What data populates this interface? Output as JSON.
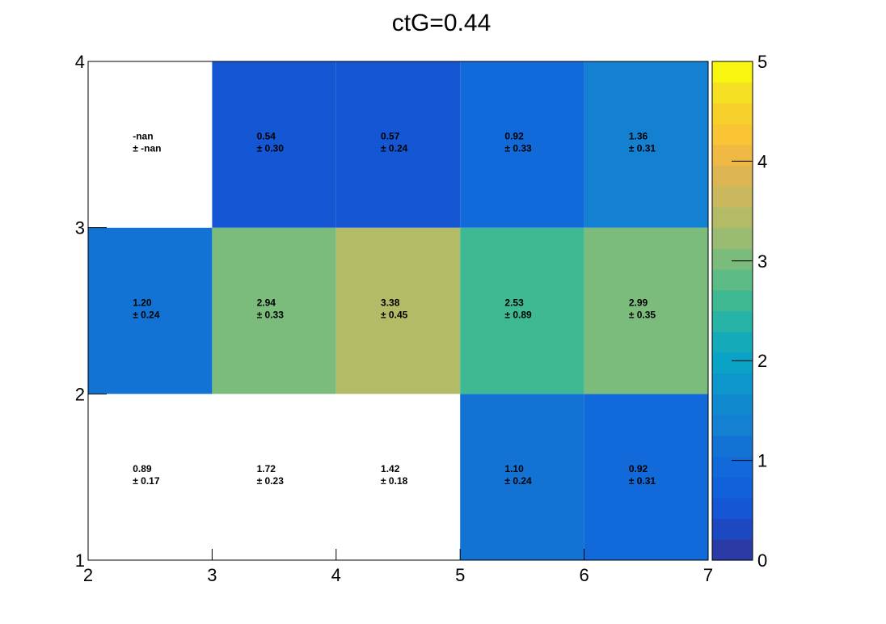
{
  "chart_data": {
    "type": "heatmap",
    "title": "ctG=0.44",
    "xlabel": "",
    "ylabel": "",
    "x_edges": [
      2,
      3,
      4,
      5,
      6,
      7
    ],
    "y_edges": [
      1,
      2,
      3,
      4
    ],
    "xlim": [
      2,
      7
    ],
    "ylim": [
      1,
      4
    ],
    "x_tick_labels": [
      "2",
      "3",
      "4",
      "5",
      "6",
      "7"
    ],
    "y_tick_labels": [
      "1",
      "2",
      "3",
      "4"
    ],
    "zlim": [
      0,
      5
    ],
    "colorbar_tick_labels": [
      "0",
      "1",
      "2",
      "3",
      "4",
      "5"
    ],
    "cells": [
      {
        "x": 2.5,
        "y": 1.5,
        "value": 0.89,
        "error": 0.17,
        "label": "0.89",
        "error_label": "± 0.17",
        "filled": false
      },
      {
        "x": 3.5,
        "y": 1.5,
        "value": 1.72,
        "error": 0.23,
        "label": "1.72",
        "error_label": "± 0.23",
        "filled": false
      },
      {
        "x": 4.5,
        "y": 1.5,
        "value": 1.42,
        "error": 0.18,
        "label": "1.42",
        "error_label": "± 0.18",
        "filled": false
      },
      {
        "x": 5.5,
        "y": 1.5,
        "value": 1.1,
        "error": 0.24,
        "label": "1.10",
        "error_label": "± 0.24",
        "filled": true
      },
      {
        "x": 6.5,
        "y": 1.5,
        "value": 0.92,
        "error": 0.31,
        "label": "0.92",
        "error_label": "± 0.31",
        "filled": true
      },
      {
        "x": 2.5,
        "y": 2.5,
        "value": 1.2,
        "error": 0.24,
        "label": "1.20",
        "error_label": "± 0.24",
        "filled": true
      },
      {
        "x": 3.5,
        "y": 2.5,
        "value": 2.94,
        "error": 0.33,
        "label": "2.94",
        "error_label": "± 0.33",
        "filled": true
      },
      {
        "x": 4.5,
        "y": 2.5,
        "value": 3.38,
        "error": 0.45,
        "label": "3.38",
        "error_label": "± 0.45",
        "filled": true
      },
      {
        "x": 5.5,
        "y": 2.5,
        "value": 2.53,
        "error": 0.89,
        "label": "2.53",
        "error_label": "± 0.89",
        "filled": true
      },
      {
        "x": 6.5,
        "y": 2.5,
        "value": 2.99,
        "error": 0.35,
        "label": "2.99",
        "error_label": "± 0.35",
        "filled": true
      },
      {
        "x": 2.5,
        "y": 3.5,
        "value": null,
        "error": null,
        "label": "-nan",
        "error_label": "± -nan",
        "filled": false
      },
      {
        "x": 3.5,
        "y": 3.5,
        "value": 0.54,
        "error": 0.3,
        "label": "0.54",
        "error_label": "± 0.30",
        "filled": true
      },
      {
        "x": 4.5,
        "y": 3.5,
        "value": 0.57,
        "error": 0.24,
        "label": "0.57",
        "error_label": "± 0.24",
        "filled": true
      },
      {
        "x": 5.5,
        "y": 3.5,
        "value": 0.92,
        "error": 0.33,
        "label": "0.92",
        "error_label": "± 0.33",
        "filled": true
      },
      {
        "x": 6.5,
        "y": 3.5,
        "value": 1.36,
        "error": 0.31,
        "label": "1.36",
        "error_label": "± 0.31",
        "filled": true
      }
    ],
    "palette": [
      "#2b3ba5",
      "#1c48c2",
      "#1456d4",
      "#1162da",
      "#1269d9",
      "#1273d5",
      "#1480d2",
      "#1189cf",
      "#0d96cc",
      "#0aa2c6",
      "#14aab9",
      "#27b3a6",
      "#3fb894",
      "#5dbb86",
      "#7bbc7c",
      "#9abc72",
      "#b3bb67",
      "#c9b85e",
      "#ddb552",
      "#efb943",
      "#fac535",
      "#f8d02c",
      "#f5e023",
      "#f8f50f"
    ],
    "grid": false,
    "legend": "none"
  }
}
